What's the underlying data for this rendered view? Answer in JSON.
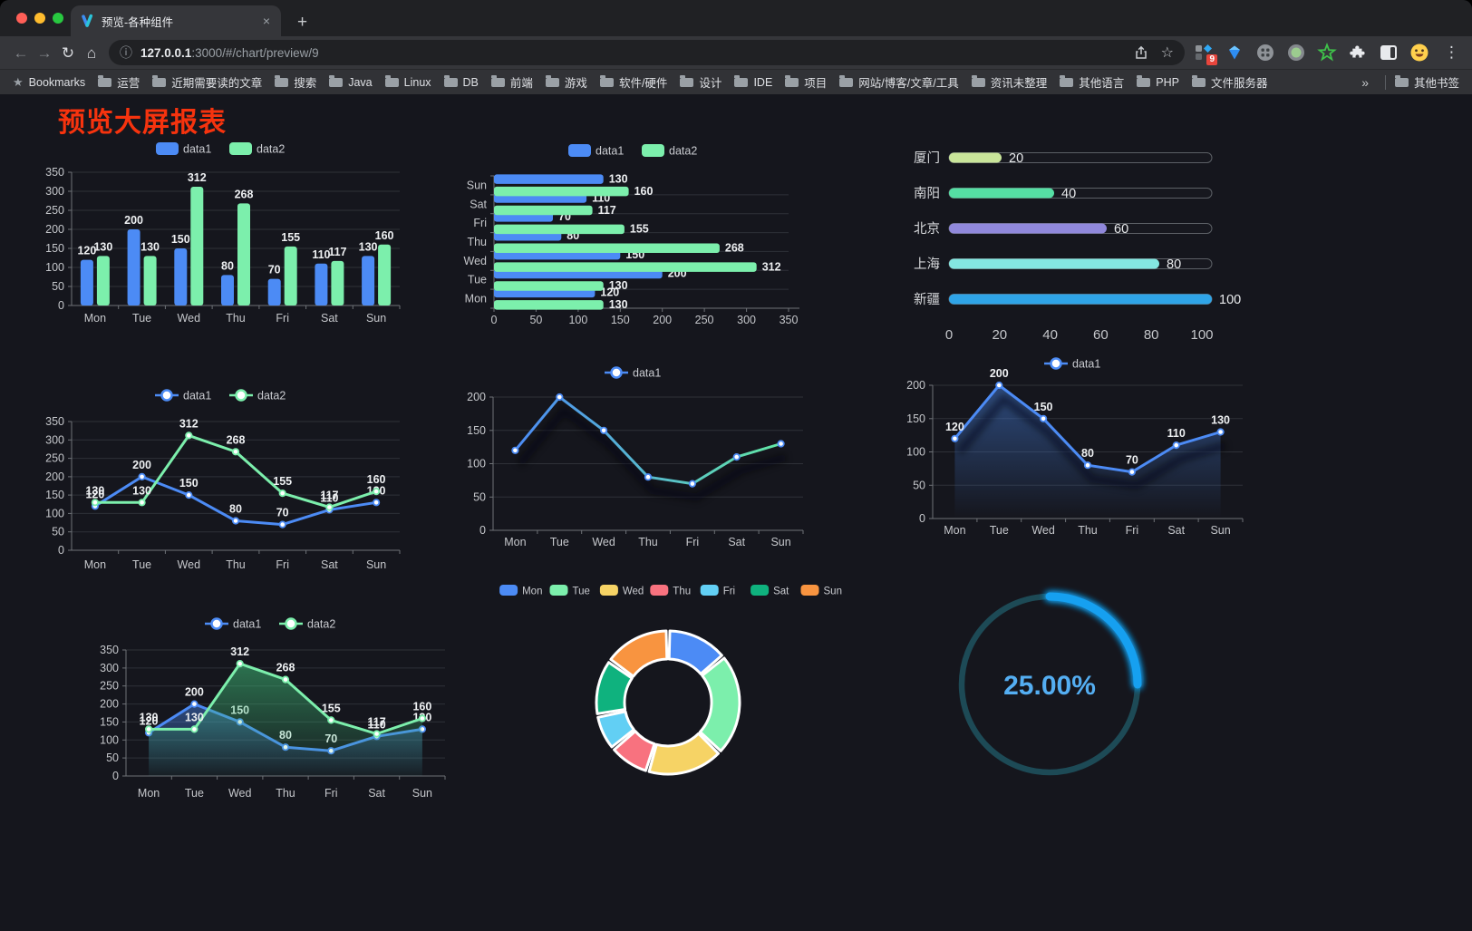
{
  "icons": {
    "back": "←",
    "forward": "→",
    "reload": "↻",
    "home": "⌂",
    "info": "ⓘ",
    "star": "☆",
    "menu": "⋮",
    "bookmarks_star": "★",
    "close": "×",
    "new_tab": "+"
  },
  "browser": {
    "tab": {
      "title": "预览-各种组件"
    },
    "url": {
      "host": "127.0.0.1",
      "rest": ":3000/#/chart/preview/9"
    },
    "extension_badge": "9",
    "bookmarks": {
      "label": "Bookmarks",
      "items": [
        "运营",
        "近期需要读的文章",
        "搜索",
        "Java",
        "Linux",
        "DB",
        "前端",
        "游戏",
        "软件/硬件",
        "设计",
        "IDE",
        "项目",
        "网站/博客/文章/工具",
        "资讯未整理",
        "其他语言",
        "PHP",
        "文件服务器"
      ],
      "overflow": "»",
      "other": "其他书签"
    }
  },
  "page": {
    "title": "预览大屏报表",
    "title_color": "#f6330e",
    "background": "#15161d"
  },
  "chart_data": [
    {
      "type": "bar",
      "legend": "rect",
      "labels": true,
      "categories": [
        "Mon",
        "Tue",
        "Wed",
        "Thu",
        "Fri",
        "Sat",
        "Sun"
      ],
      "ylim": [
        0,
        350
      ],
      "ytick": 50,
      "series": [
        {
          "name": "data1",
          "color": "#4C8BF5",
          "values": [
            120,
            200,
            150,
            80,
            70,
            110,
            130
          ]
        },
        {
          "name": "data2",
          "color": "#7CEFAC",
          "values": [
            130,
            130,
            312,
            268,
            155,
            117,
            160
          ]
        }
      ],
      "layout": {
        "t": 42,
        "b": 26,
        "l": 44,
        "r": 14
      }
    },
    {
      "type": "hbar",
      "legend": "rect",
      "labels": true,
      "categories": [
        "Mon",
        "Tue",
        "Wed",
        "Thu",
        "Fri",
        "Sat",
        "Sun"
      ],
      "xlim": [
        0,
        350
      ],
      "xtick": 50,
      "series": [
        {
          "name": "data1",
          "color": "#4C8BF5",
          "values": [
            120,
            200,
            150,
            80,
            70,
            110,
            130
          ]
        },
        {
          "name": "data2",
          "color": "#7CEFAC",
          "values": [
            130,
            130,
            312,
            268,
            155,
            117,
            160
          ]
        }
      ],
      "layout": {
        "t": 44,
        "b": 22,
        "l": 40,
        "r": 25
      }
    },
    {
      "type": "progress",
      "xticks": [
        0,
        20,
        40,
        60,
        80,
        100
      ],
      "xlim": [
        0,
        100
      ],
      "rows": [
        {
          "label": "厦门",
          "value": 20,
          "color": "#C9E59A"
        },
        {
          "label": "南阳",
          "value": 40,
          "color": "#55DFA4"
        },
        {
          "label": "北京",
          "value": 60,
          "color": "#9088DB"
        },
        {
          "label": "上海",
          "value": 80,
          "color": "#84E7E1"
        },
        {
          "label": "新疆",
          "value": 100,
          "color": "#2FA4E7"
        }
      ]
    },
    {
      "type": "line",
      "legend": "line",
      "labels": true,
      "categories": [
        "Mon",
        "Tue",
        "Wed",
        "Thu",
        "Fri",
        "Sat",
        "Sun"
      ],
      "ylim": [
        0,
        350
      ],
      "ytick": 50,
      "series": [
        {
          "name": "data1",
          "color": "#4C8BF5",
          "values": [
            120,
            200,
            150,
            80,
            70,
            110,
            130
          ]
        },
        {
          "name": "data2",
          "color": "#7CEFAC",
          "values": [
            130,
            130,
            312,
            268,
            155,
            117,
            160
          ]
        }
      ],
      "layout": {
        "t": 45,
        "b": 28,
        "l": 44,
        "r": 14
      }
    },
    {
      "type": "line",
      "legend": "line",
      "labels": false,
      "shadow": true,
      "categories": [
        "Mon",
        "Tue",
        "Wed",
        "Thu",
        "Fri",
        "Sat",
        "Sun"
      ],
      "ylim": [
        0,
        200
      ],
      "ytick": 50,
      "series": [
        {
          "name": "data1",
          "color": "#4C8BF5",
          "gradient": [
            "#4C8BF5",
            "#62E8A5"
          ],
          "values": [
            120,
            200,
            150,
            80,
            70,
            110,
            130
          ]
        }
      ],
      "layout": {
        "t": 43,
        "b": 25,
        "l": 44,
        "r": 14
      }
    },
    {
      "type": "line",
      "legend": "line",
      "labels": true,
      "shadow": true,
      "categories": [
        "Mon",
        "Tue",
        "Wed",
        "Thu",
        "Fri",
        "Sat",
        "Sun"
      ],
      "ylim": [
        0,
        200
      ],
      "ytick": 50,
      "series": [
        {
          "name": "data1",
          "color": "#4C8BF5",
          "area": [
            "rgba(62,110,190,0.6)",
            "rgba(62,110,190,0)"
          ],
          "values": [
            120,
            200,
            150,
            80,
            70,
            110,
            130
          ]
        }
      ],
      "layout": {
        "t": 40,
        "b": 25,
        "l": 44,
        "r": 14
      }
    },
    {
      "type": "line",
      "legend": "line",
      "labels": true,
      "categories": [
        "Mon",
        "Tue",
        "Wed",
        "Thu",
        "Fri",
        "Sat",
        "Sun"
      ],
      "ylim": [
        0,
        350
      ],
      "ytick": 50,
      "series": [
        {
          "name": "data1",
          "color": "#4C8BF5",
          "area": [
            "rgba(76,139,245,0.45)",
            "rgba(76,139,245,0.02)"
          ],
          "values": [
            120,
            200,
            150,
            80,
            70,
            110,
            130
          ]
        },
        {
          "name": "data2",
          "color": "#7CEFAC",
          "area": [
            "rgba(63,190,120,0.55)",
            "rgba(63,190,120,0.03)"
          ],
          "values": [
            130,
            130,
            312,
            268,
            155,
            117,
            160
          ]
        }
      ],
      "layout": {
        "t": 45,
        "b": 31,
        "l": 44,
        "r": 14
      }
    },
    {
      "type": "donut",
      "legend": "pie",
      "categories": [
        "Mon",
        "Tue",
        "Wed",
        "Thu",
        "Fri",
        "Sat",
        "Sun"
      ],
      "values": [
        120,
        200,
        150,
        80,
        70,
        110,
        130
      ],
      "colors": [
        "#4C8BF5",
        "#7CEFAC",
        "#F6D365",
        "#F8727F",
        "#62CFF4",
        "#0FB27E",
        "#F89440"
      ],
      "center": [
        197,
        140
      ],
      "radius": [
        48,
        79
      ]
    },
    {
      "type": "gauge",
      "value": 25,
      "display": "25.00%",
      "color": "#18A0F0",
      "track": "#1D4A56",
      "text_color": "#54AEF2",
      "center": [
        118,
        122
      ],
      "radius": 97
    }
  ]
}
